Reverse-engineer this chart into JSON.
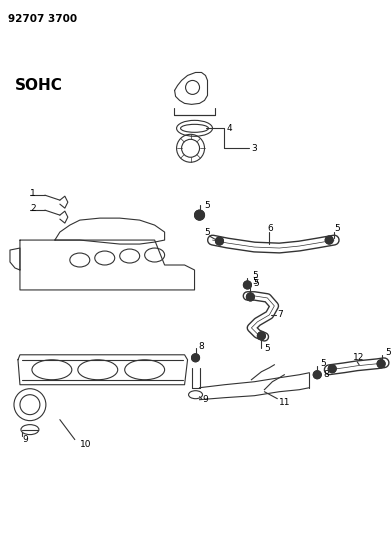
{
  "title": "92707 3700",
  "subtitle": "SOHC",
  "bg_color": "#ffffff",
  "line_color": "#333333",
  "text_color": "#000000",
  "fig_width": 3.91,
  "fig_height": 5.33,
  "dpi": 100
}
